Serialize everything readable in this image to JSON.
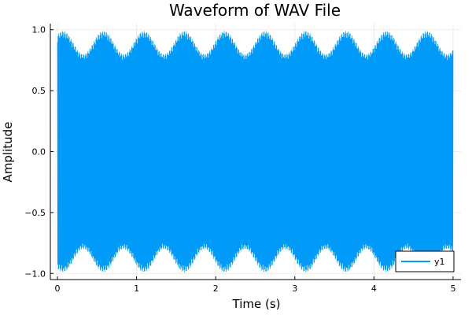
{
  "chart_data": {
    "type": "line",
    "title": "Waveform of WAV File",
    "xlabel": "Time (s)",
    "ylabel": "Amplitude",
    "xlim": [
      -0.09,
      5.1
    ],
    "ylim": [
      -1.05,
      1.05
    ],
    "xticks": [
      0,
      1,
      2,
      3,
      4,
      5
    ],
    "xtick_labels": [
      "0",
      "1",
      "2",
      "3",
      "4",
      "5"
    ],
    "yticks": [
      -1.0,
      -0.5,
      0.0,
      0.5,
      1.0
    ],
    "ytick_labels": [
      "−1.0",
      "−0.5",
      "0.0",
      "0.5",
      "1.0"
    ],
    "grid": true,
    "legend_position": "bottom-right",
    "series": [
      {
        "name": "y1",
        "color": "#009AF9",
        "x_range": [
          0,
          5
        ],
        "envelope": {
          "description_values": "dense oscillation filling the band",
          "peak_max": 0.99,
          "peak_min": 0.8,
          "beat_peaks_x": [
            0.07,
            0.58,
            1.1,
            1.6,
            2.1,
            2.63,
            3.13,
            3.65,
            4.16,
            4.67
          ],
          "beat_troughs_x": [
            0.33,
            0.84,
            1.35,
            1.86,
            2.37,
            2.88,
            3.39,
            3.9,
            4.41,
            4.92
          ]
        }
      }
    ]
  }
}
